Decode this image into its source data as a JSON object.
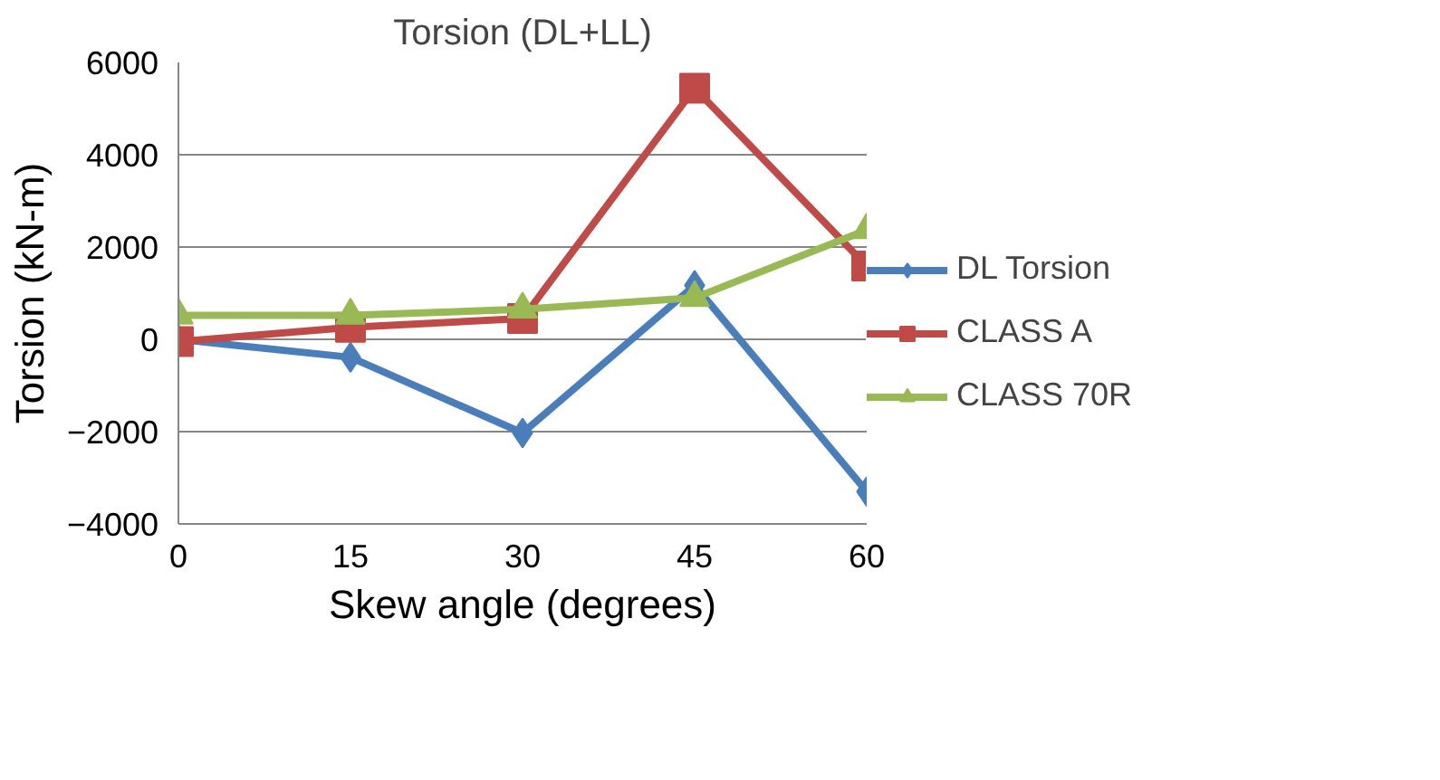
{
  "chart_data": {
    "type": "line",
    "title": "Torsion (DL+LL)",
    "xlabel": "Skew angle (degrees)",
    "ylabel": "Torsion (kN-m)",
    "categories": [
      "0",
      "15",
      "30",
      "45",
      "60"
    ],
    "series": [
      {
        "name": "DL Torsion",
        "color": "#4a7ebb",
        "marker": "diamond",
        "values": [
          0,
          -390,
          -2030,
          1170,
          -3300
        ]
      },
      {
        "name": "CLASS A",
        "color": "#be4b48",
        "marker": "square",
        "values": [
          -50,
          260,
          450,
          5440,
          1590
        ]
      },
      {
        "name": "CLASS 70R",
        "color": "#98b954",
        "marker": "triangle",
        "values": [
          520,
          520,
          650,
          900,
          2370
        ]
      }
    ],
    "ylim": [
      -4000,
      6000
    ],
    "yticks": [
      -4000,
      -2000,
      0,
      2000,
      4000,
      6000
    ],
    "grid": "y",
    "legend": "right",
    "line_style": "solid"
  }
}
